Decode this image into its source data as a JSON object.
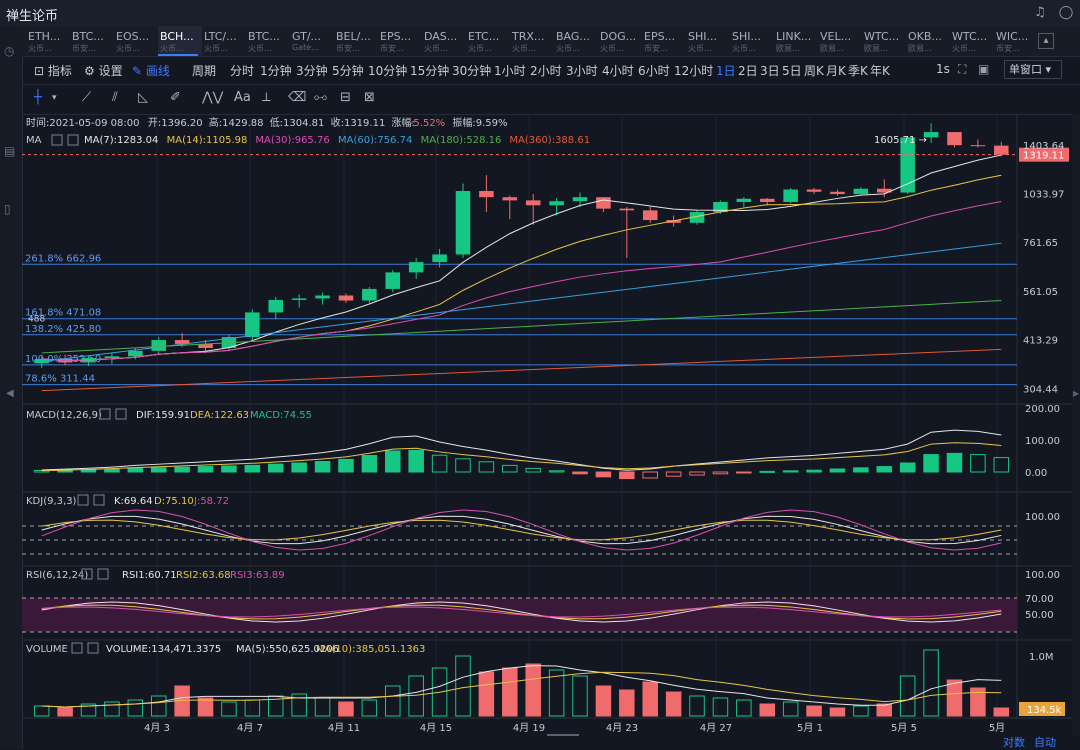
{
  "app": {
    "title": "禅生论币"
  },
  "tabs": [
    {
      "name": "ETH...",
      "sub": "火币..."
    },
    {
      "name": "BTC...",
      "sub": "币安..."
    },
    {
      "name": "EOS...",
      "sub": "火币..."
    },
    {
      "name": "BCH...",
      "sub": "火币...",
      "active": true
    },
    {
      "name": "LTC/...",
      "sub": "火币..."
    },
    {
      "name": "BTC...",
      "sub": "火币..."
    },
    {
      "name": "GT/...",
      "sub": "Gate..."
    },
    {
      "name": "BEL/...",
      "sub": "币安..."
    },
    {
      "name": "EPS...",
      "sub": "币安..."
    },
    {
      "name": "DAS...",
      "sub": "火币..."
    },
    {
      "name": "ETC...",
      "sub": "火币..."
    },
    {
      "name": "TRX...",
      "sub": "火币..."
    },
    {
      "name": "BAG...",
      "sub": "火币..."
    },
    {
      "name": "DOG...",
      "sub": "火币..."
    },
    {
      "name": "EPS...",
      "sub": "币安..."
    },
    {
      "name": "SHI...",
      "sub": "火币..."
    },
    {
      "name": "SHI...",
      "sub": "火币..."
    },
    {
      "name": "LINK...",
      "sub": "欧易..."
    },
    {
      "name": "VEL...",
      "sub": "欧易..."
    },
    {
      "name": "WTC...",
      "sub": "欧易..."
    },
    {
      "name": "OKB...",
      "sub": "欧易..."
    },
    {
      "name": "WTC...",
      "sub": "火币..."
    },
    {
      "name": "WIC...",
      "sub": "币安..."
    }
  ],
  "toolbar": {
    "indicator": "指标",
    "settings": "设置",
    "draw": "画线",
    "single_window": "单窗口"
  },
  "periods": [
    "周期",
    "分时",
    "1分钟",
    "3分钟",
    "5分钟",
    "10分钟",
    "15分钟",
    "30分钟",
    "1小时",
    "2小时",
    "3小时",
    "4小时",
    "6小时",
    "12小时",
    "1日",
    "2日",
    "3日",
    "5日",
    "周K",
    "月K",
    "季K",
    "年K",
    "1s"
  ],
  "active_period": "1日",
  "draw_tools": [
    "crosshair",
    "trendline",
    "ray",
    "triangle",
    "pen",
    "wave",
    "Aa",
    "ruler",
    "eraser",
    "measure",
    "lock",
    "trash"
  ],
  "ohlc": {
    "time_label": "时间:",
    "time": "2021-05-09 08:00",
    "open_label": "开:",
    "open": "1396.20",
    "high_label": "高:",
    "high": "1429.88",
    "low_label": "低:",
    "low": "1304.81",
    "close_label": "收:",
    "close": "1319.11",
    "chg_label": "涨幅:",
    "chg": "-5.52%",
    "amp_label": "振幅:",
    "amp": "9.59%"
  },
  "ma_legend": [
    {
      "label": "MA(7):1283.04",
      "color": "#e6e6e6"
    },
    {
      "label": "MA(14):1105.98",
      "color": "#e8c547"
    },
    {
      "label": "MA(30):965.76",
      "color": "#d94fb3"
    },
    {
      "label": "MA(60):756.74",
      "color": "#3aa0d8"
    },
    {
      "label": "MA(180):528.16",
      "color": "#4caf50"
    },
    {
      "label": "MA(360):388.61",
      "color": "#e05a3a"
    }
  ],
  "main_axis": [
    "1403.64",
    "1033.97",
    "761.65",
    "561.05",
    "413.29",
    "304.44"
  ],
  "current_price": "1319.11",
  "max_price_label": "1605.71",
  "fib_levels": [
    {
      "label": "261.8% 662.96",
      "price": 662.96
    },
    {
      "label": "161.8% 471.08",
      "price": 471.08
    },
    {
      "label": "138.2% 425.80",
      "price": 425.8
    },
    {
      "label": "100.0% 352.50",
      "price": 352.5
    },
    {
      "label": "78.6% 311.44",
      "price": 311.44
    }
  ],
  "fib_extra_label": "488",
  "macd": {
    "name": "MACD(12,26,9)",
    "dif": "DIF:159.91",
    "dea": "DEA:122.63",
    "macd": "MACD:74.55",
    "axis": [
      "200.00",
      "100.00",
      "0.00"
    ]
  },
  "kdj": {
    "name": "KDJ(9,3,3)",
    "k": "K:69.64",
    "d": "D:75.10",
    "j": "J:58.72",
    "axis": [
      "100.00"
    ]
  },
  "rsi": {
    "name": "RSI(6,12,24)",
    "r1": "RSI1:60.71",
    "r2": "RSI2:63.68",
    "r3": "RSI3:63.89",
    "axis": [
      "100.00",
      "70.00",
      "50.00"
    ]
  },
  "volume": {
    "name": "VOLUME",
    "v": "VOLUME:134,471.3375",
    "ma5": "MA(5):550,625.0206",
    "ma10": "MA(10):385,051.1363",
    "axis": [
      "1.0M"
    ],
    "last": "134.5k"
  },
  "x_labels": [
    "4月 3",
    "4月 7",
    "4月 11",
    "4月 15",
    "4月 19",
    "4月 23",
    "4月 27",
    "5月 1",
    "5月 5",
    "5月"
  ],
  "bottom_buttons": {
    "log": "对数",
    "auto": "自动"
  },
  "colors": {
    "up": "#16c784",
    "down": "#f06b6b",
    "accent": "#3d7cff",
    "background": "#131722"
  },
  "candles": [
    [
      356,
      372,
      346,
      366
    ],
    [
      366,
      376,
      352,
      358
    ],
    [
      358,
      374,
      350,
      368
    ],
    [
      368,
      380,
      355,
      372
    ],
    [
      372,
      392,
      365,
      385
    ],
    [
      385,
      420,
      378,
      412
    ],
    [
      412,
      430,
      395,
      402
    ],
    [
      402,
      412,
      380,
      392
    ],
    [
      392,
      425,
      385,
      420
    ],
    [
      420,
      500,
      410,
      490
    ],
    [
      490,
      540,
      470,
      530
    ],
    [
      530,
      548,
      505,
      535
    ],
    [
      535,
      555,
      515,
      545
    ],
    [
      545,
      552,
      520,
      528
    ],
    [
      528,
      575,
      520,
      568
    ],
    [
      568,
      640,
      556,
      630
    ],
    [
      630,
      690,
      605,
      672
    ],
    [
      672,
      730,
      650,
      705
    ],
    [
      705,
      1100,
      690,
      1050
    ],
    [
      1050,
      1160,
      920,
      1010
    ],
    [
      1010,
      1020,
      880,
      990
    ],
    [
      990,
      1030,
      850,
      960
    ],
    [
      960,
      1005,
      900,
      985
    ],
    [
      985,
      1040,
      950,
      1010
    ],
    [
      1010,
      1010,
      920,
      940
    ],
    [
      940,
      950,
      690,
      930
    ],
    [
      930,
      950,
      860,
      875
    ],
    [
      875,
      900,
      840,
      860
    ],
    [
      860,
      930,
      850,
      920
    ],
    [
      920,
      990,
      910,
      980
    ],
    [
      980,
      1010,
      950,
      1000
    ],
    [
      1000,
      1005,
      960,
      980
    ],
    [
      980,
      1070,
      970,
      1060
    ],
    [
      1060,
      1070,
      1030,
      1045
    ],
    [
      1045,
      1060,
      1020,
      1030
    ],
    [
      1030,
      1075,
      1020,
      1065
    ],
    [
      1065,
      1130,
      1010,
      1040
    ],
    [
      1040,
      1480,
      1030,
      1470
    ],
    [
      1470,
      1605,
      1420,
      1520
    ],
    [
      1520,
      1520,
      1380,
      1400
    ],
    [
      1400,
      1450,
      1380,
      1396
    ],
    [
      1396,
      1430,
      1305,
      1319
    ]
  ]
}
